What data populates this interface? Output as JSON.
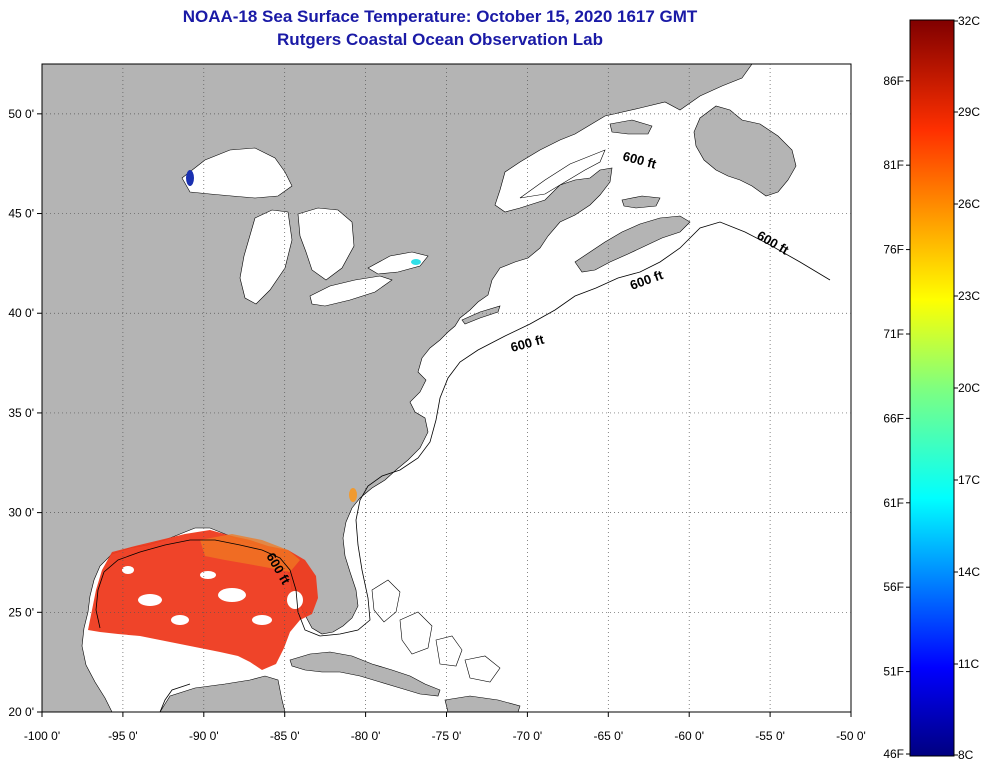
{
  "title": {
    "line1": "NOAA-18 Sea Surface Temperature:  October 15, 2020 1617 GMT",
    "line2": "Rutgers Coastal Ocean Observation Lab"
  },
  "colors": {
    "land": "#b4b4b4",
    "water": "#ffffff",
    "title": "#1a1aa6",
    "grid": "#555555",
    "gulf_sst": "#ee3a1e"
  },
  "map": {
    "lon_range": [
      -100,
      -50
    ],
    "lat_range": [
      20,
      52.5
    ],
    "x_ticks": [
      {
        "lon": -100,
        "label": "-100 0'"
      },
      {
        "lon": -95,
        "label": "-95 0'"
      },
      {
        "lon": -90,
        "label": "-90 0'"
      },
      {
        "lon": -85,
        "label": "-85 0'"
      },
      {
        "lon": -80,
        "label": "-80 0'"
      },
      {
        "lon": -75,
        "label": "-75 0'"
      },
      {
        "lon": -70,
        "label": "-70 0'"
      },
      {
        "lon": -65,
        "label": "-65 0'"
      },
      {
        "lon": -60,
        "label": "-60 0'"
      },
      {
        "lon": -55,
        "label": "-55 0'"
      },
      {
        "lon": -50,
        "label": "-50 0'"
      }
    ],
    "y_ticks": [
      {
        "lat": 50,
        "label": "50 0'"
      },
      {
        "lat": 45,
        "label": "45 0'"
      },
      {
        "lat": 40,
        "label": "40 0'"
      },
      {
        "lat": 35,
        "label": "35 0'"
      },
      {
        "lat": 30,
        "label": "30 0'"
      },
      {
        "lat": 25,
        "label": "25 0'"
      },
      {
        "lat": 20,
        "label": "20 0'"
      }
    ],
    "contour_label": "600 ft"
  },
  "colorbar": {
    "celsius_ticks": [
      {
        "value": 32,
        "label": "32C"
      },
      {
        "value": 29,
        "label": "29C"
      },
      {
        "value": 26,
        "label": "26C"
      },
      {
        "value": 23,
        "label": "23C"
      },
      {
        "value": 20,
        "label": "20C"
      },
      {
        "value": 17,
        "label": "17C"
      },
      {
        "value": 14,
        "label": "14C"
      },
      {
        "value": 11,
        "label": "11C"
      },
      {
        "value": 8,
        "label": "8C"
      }
    ],
    "fahrenheit_ticks": [
      {
        "value": 86,
        "label": "86F"
      },
      {
        "value": 81,
        "label": "81F"
      },
      {
        "value": 76,
        "label": "76F"
      },
      {
        "value": 71,
        "label": "71F"
      },
      {
        "value": 66,
        "label": "66F"
      },
      {
        "value": 61,
        "label": "61F"
      },
      {
        "value": 56,
        "label": "56F"
      },
      {
        "value": 51,
        "label": "51F"
      },
      {
        "value": 46,
        "label": "46F"
      }
    ]
  }
}
